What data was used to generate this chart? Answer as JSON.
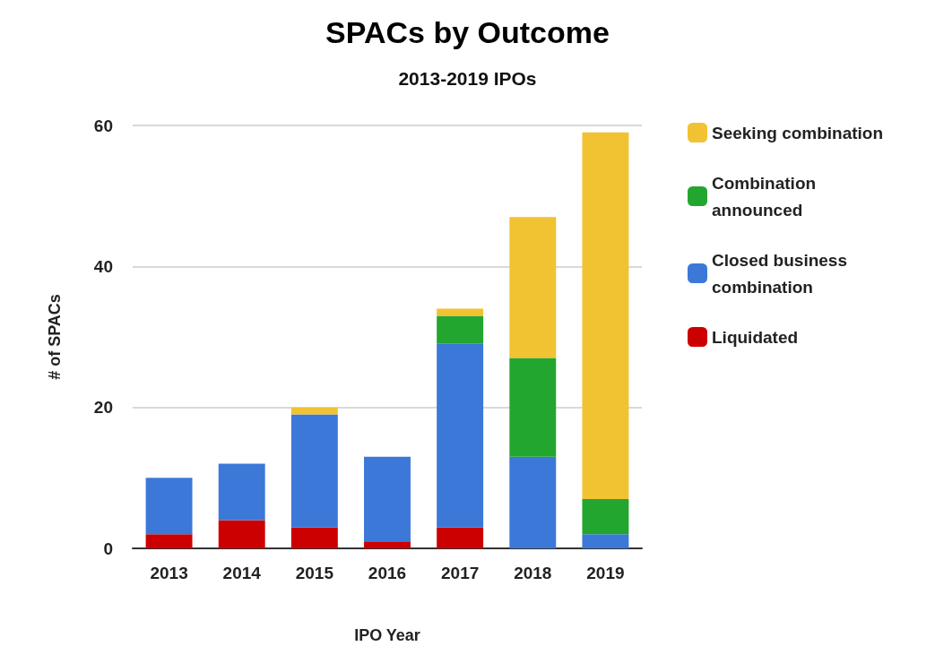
{
  "chart_data": {
    "type": "bar",
    "title": "SPACs by Outcome",
    "subtitle": "2013-2019 IPOs",
    "xlabel": "IPO Year",
    "ylabel": "# of SPACs",
    "categories": [
      "2013",
      "2014",
      "2015",
      "2016",
      "2017",
      "2018",
      "2019"
    ],
    "series": [
      {
        "name": "Liquidated",
        "color": "#cc0000",
        "values": [
          2,
          4,
          3,
          1,
          3,
          0,
          0
        ]
      },
      {
        "name": "Closed business combination",
        "color": "#3c78d8",
        "values": [
          8,
          8,
          16,
          12,
          26,
          13,
          2
        ]
      },
      {
        "name": "Combination announced",
        "color": "#23a62f",
        "values": [
          0,
          0,
          0,
          0,
          4,
          14,
          5
        ]
      },
      {
        "name": "Seeking combination",
        "color": "#f1c232",
        "values": [
          0,
          0,
          1,
          0,
          1,
          20,
          52
        ]
      }
    ],
    "stacked": true,
    "ylim": [
      0,
      60
    ],
    "yticks": [
      0,
      20,
      40,
      60
    ],
    "grid": "y",
    "legend": "right"
  }
}
